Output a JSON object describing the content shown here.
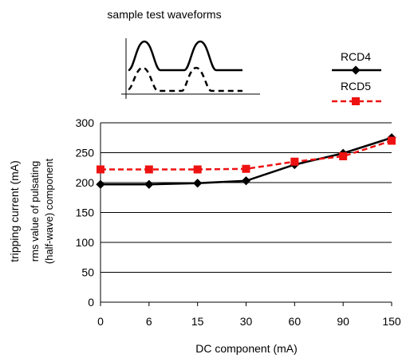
{
  "chart_data": {
    "type": "line",
    "inset_caption": "sample test waveforms",
    "categories": [
      "0",
      "6",
      "15",
      "30",
      "60",
      "90",
      "150"
    ],
    "series": [
      {
        "name": "RCD4",
        "values": [
          197,
          197,
          199,
          203,
          230,
          249,
          275
        ],
        "color": "#000000",
        "marker": "diamond",
        "dashed": false
      },
      {
        "name": "RCD5",
        "values": [
          222,
          222,
          222,
          223,
          235,
          244,
          270
        ],
        "color": "#ee1111",
        "marker": "square",
        "dashed": true
      }
    ],
    "xlabel": "DC component (mA)",
    "ylabel_outer": "tripping current (mA)",
    "ylabel_inner_1": "rms value of pulsating",
    "ylabel_inner_2": "(half-wave) component",
    "ylim": [
      0,
      300
    ],
    "yticks": [
      "0",
      "50",
      "100",
      "150",
      "200",
      "250",
      "300"
    ],
    "grid": "horizontal",
    "legend_placement": "top-right"
  }
}
